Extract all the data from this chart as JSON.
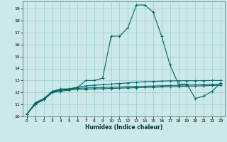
{
  "xlabel": "Humidex (Indice chaleur)",
  "bg_color": "#cce8e8",
  "line_color": "#006666",
  "grid_color": "#99cccc",
  "xlim": [
    -0.5,
    23.5
  ],
  "ylim": [
    10,
    19.6
  ],
  "yticks": [
    10,
    11,
    12,
    13,
    14,
    15,
    16,
    17,
    18,
    19
  ],
  "xticks": [
    0,
    1,
    2,
    3,
    4,
    5,
    6,
    7,
    8,
    9,
    10,
    11,
    12,
    13,
    14,
    15,
    16,
    17,
    18,
    19,
    20,
    21,
    22,
    23
  ],
  "lines": [
    {
      "x": [
        0,
        1,
        2,
        3,
        4,
        5,
        6,
        7,
        8,
        9,
        10,
        11,
        12,
        13,
        14,
        15,
        16,
        17,
        18,
        19,
        20,
        21,
        22,
        23
      ],
      "y": [
        10.2,
        11.0,
        11.4,
        12.0,
        12.1,
        12.2,
        12.4,
        13.0,
        13.0,
        13.2,
        16.7,
        16.7,
        17.4,
        19.3,
        19.3,
        18.7,
        16.7,
        14.3,
        12.7,
        12.7,
        11.5,
        11.7,
        12.1,
        12.8
      ]
    },
    {
      "x": [
        0,
        1,
        2,
        3,
        4,
        5,
        6,
        7,
        8,
        9,
        10,
        11,
        12,
        13,
        14,
        15,
        16,
        17,
        18,
        19,
        20,
        21,
        22,
        23
      ],
      "y": [
        10.2,
        11.15,
        11.5,
        12.1,
        12.3,
        12.3,
        12.45,
        12.55,
        12.6,
        12.65,
        12.7,
        12.75,
        12.8,
        12.85,
        12.9,
        12.92,
        12.95,
        12.97,
        12.98,
        12.98,
        12.98,
        12.99,
        13.0,
        13.0
      ]
    },
    {
      "x": [
        0,
        1,
        2,
        3,
        4,
        5,
        6,
        7,
        8,
        9,
        10,
        11,
        12,
        13,
        14,
        15,
        16,
        17,
        18,
        19,
        20,
        21,
        22,
        23
      ],
      "y": [
        10.2,
        11.1,
        11.4,
        12.05,
        12.25,
        12.3,
        12.35,
        12.38,
        12.4,
        12.42,
        12.44,
        12.46,
        12.48,
        12.5,
        12.52,
        12.54,
        12.56,
        12.58,
        12.6,
        12.62,
        12.64,
        12.66,
        12.68,
        12.7
      ]
    },
    {
      "x": [
        0,
        1,
        2,
        3,
        4,
        5,
        6,
        7,
        8,
        9,
        10,
        11,
        12,
        13,
        14,
        15,
        16,
        17,
        18,
        19,
        20,
        21,
        22,
        23
      ],
      "y": [
        10.2,
        11.1,
        11.4,
        12.0,
        12.2,
        12.22,
        12.25,
        12.28,
        12.3,
        12.32,
        12.34,
        12.36,
        12.38,
        12.4,
        12.42,
        12.44,
        12.46,
        12.48,
        12.5,
        12.52,
        12.54,
        12.56,
        12.58,
        12.6
      ]
    }
  ]
}
